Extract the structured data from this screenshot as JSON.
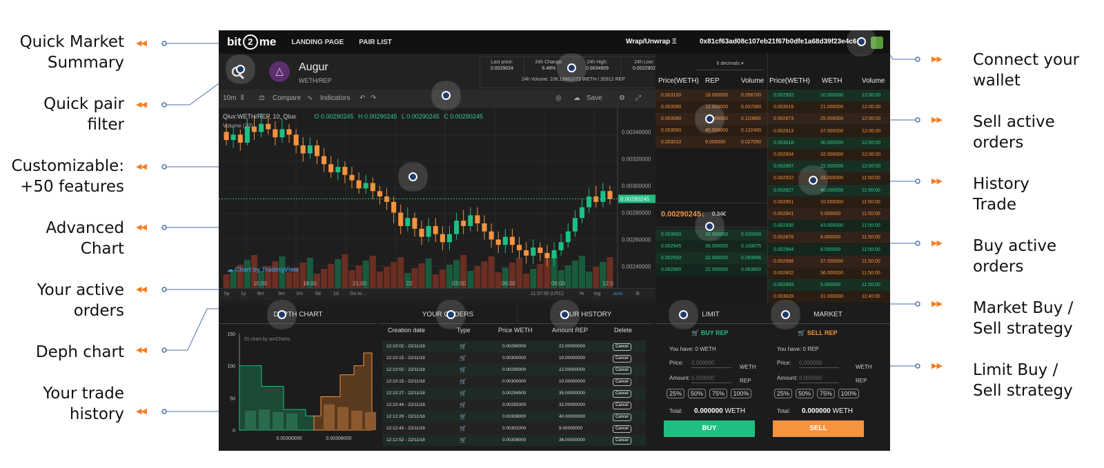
{
  "callouts_left": [
    {
      "text": "Quick Market\nSummary"
    },
    {
      "text": "Quick pair\nfilter"
    },
    {
      "text": "Customizable:\n+50 features"
    },
    {
      "text": "Advanced\nChart"
    },
    {
      "text": "Your active\norders"
    },
    {
      "text": "Deph chart"
    },
    {
      "text": "Your trade\nhistory"
    }
  ],
  "callouts_right": [
    {
      "text": "Connect your\nwallet"
    },
    {
      "text": "Sell active\norders"
    },
    {
      "text": "History\nTrade"
    },
    {
      "text": "Buy active\norders"
    },
    {
      "text": "Market Buy /\nSell strategy"
    },
    {
      "text": "Limit Buy /\nSell strategy"
    }
  ],
  "colors": {
    "accent": "#f47c20",
    "buy": "#1fbf83",
    "sell": "#f5933e",
    "panel": "#1c1c1c"
  },
  "topbar": {
    "logo_left": "bit",
    "logo_mid": "2",
    "logo_right": "me",
    "nav": [
      "LANDING PAGE",
      "PAIR LIST"
    ],
    "wrap": "Wrap/Unwrap Ξ",
    "address": "0x81cf63ad08c107eb21f67b0dfe1a68d39f23e4c6"
  },
  "pair": {
    "name": "Augur",
    "sub": "WETH/REP",
    "icon": "augur-icon"
  },
  "summary": {
    "last_price_label": "Last price:",
    "last_price": "0.0029024",
    "change_label": "24h Change:",
    "change": "6.48%",
    "high_label": "24h High:",
    "high": "0.0034909",
    "low_label": "24h Low:",
    "low": "0.0022902",
    "volume": "24h Volume: 106.13661073 WETH / 35912 REP"
  },
  "toolbar": {
    "interval": "10m",
    "compare": "Compare",
    "indicators": "Indicators",
    "save": "Save"
  },
  "chart": {
    "legend": "Qlux:WETH/REP, 10, Qlux",
    "ohlc": [
      "O 0.00290245",
      "H 0.00290245",
      "L 0.00290245",
      "C 0.00290245"
    ],
    "volume_label": "Volume (20)",
    "y_ticks": [
      "0.00340000",
      "0.00320000",
      "0.00300000",
      "0.00280000",
      "0.00260000",
      "0.00240000"
    ],
    "current_price": "0.00290245",
    "x_ticks": [
      "15:00",
      "18:00",
      "21:00",
      "22",
      "03:00",
      "06:00",
      "09:00",
      "12:0"
    ],
    "watermark": "Chart by TradingView",
    "ranges": [
      "5y",
      "1y",
      "6m",
      "3m",
      "1m",
      "5d",
      "1d",
      "Go to..."
    ],
    "clock": "11:37:50 (UTC)",
    "scale_opts": [
      "%",
      "log",
      "auto"
    ]
  },
  "orderbook": {
    "decimals": "6 decimals",
    "headers": [
      "Price(WETH)",
      "REP",
      "Volume"
    ],
    "sells": [
      [
        "0.003150",
        "18.000000",
        "0.056700"
      ],
      [
        "0.003090",
        "12.000000",
        "0.037080"
      ],
      [
        "0.003080",
        "36.000000",
        "0.110880"
      ],
      [
        "0.003060",
        "40.000000",
        "0.122400"
      ],
      [
        "0.003010",
        "9.000000",
        "0.027090"
      ]
    ],
    "mid_price": "0.00290245",
    "mid_change": "0.34€",
    "buys": [
      [
        "0.003000",
        "10.000000",
        "0.030000"
      ],
      [
        "0.002945",
        "35.000000",
        "0.103075"
      ],
      [
        "0.002933",
        "32.000000",
        "0.093856"
      ],
      [
        "0.002900",
        "22.000000",
        "0.063800"
      ]
    ]
  },
  "history": {
    "headers": [
      "Price(WETH)",
      "WETH",
      "Volume"
    ],
    "rows": [
      [
        "0.002902",
        "10.000000",
        "12:00:00",
        "buy"
      ],
      [
        "0.003019",
        "21.000000",
        "12:00:00",
        "sell"
      ],
      [
        "0.002873",
        "25.000000",
        "12:00:00",
        "sell"
      ],
      [
        "0.002913",
        "37.000000",
        "12:00:00",
        "sell"
      ],
      [
        "0.003018",
        "30.000000",
        "12:00:00",
        "buy"
      ],
      [
        "0.002934",
        "32.000000",
        "12:00:00",
        "sell"
      ],
      [
        "0.002887",
        "22.000000",
        "12:00:00",
        "buy"
      ],
      [
        "0.002922",
        "33.000000",
        "11:50:00",
        "sell"
      ],
      [
        "0.002827",
        "40.000000",
        "11:50:00",
        "buy"
      ],
      [
        "0.002851",
        "10.000000",
        "11:50:00",
        "sell"
      ],
      [
        "0.002941",
        "5.000000",
        "11:50:00",
        "sell"
      ],
      [
        "0.002930",
        "43.000000",
        "11:50:00",
        "buy"
      ],
      [
        "0.002878",
        "8.000000",
        "11:50:00",
        "sell"
      ],
      [
        "0.002964",
        "8.000000",
        "11:50:00",
        "buy"
      ],
      [
        "0.002966",
        "37.000000",
        "11:50:00",
        "sell"
      ],
      [
        "0.002802",
        "36.000000",
        "11:50:00",
        "sell"
      ],
      [
        "0.002869",
        "5.000000",
        "11:50:00",
        "buy"
      ],
      [
        "0.003828",
        "31.000000",
        "11:40:00",
        "sell"
      ]
    ]
  },
  "bottom_tabs": {
    "depth": "DEPTH CHART",
    "orders": "YOUR ORDERS",
    "history": "YOUR HISTORY"
  },
  "depth": {
    "credit": "JS chart by amCharts",
    "y_ticks": [
      "150",
      "100",
      "50",
      "0"
    ],
    "x_ticks": [
      "0.00300000",
      "0.00308000"
    ]
  },
  "orders": {
    "headers": [
      "Creation date",
      "Type",
      "Price WETH",
      "Amount REP",
      "Delete"
    ],
    "cancel": "Cancel",
    "rows": [
      [
        "12:10:02 - 22/11/18",
        "buy",
        "0.00290000",
        "22.00000000"
      ],
      [
        "12:10:15 - 22/11/18",
        "buy",
        "0.00300000",
        "10.00000000"
      ],
      [
        "12:10:02 - 22/11/18",
        "buy",
        "0.00290000",
        "22.00000000"
      ],
      [
        "12:10:15 - 22/11/18",
        "buy",
        "0.00300000",
        "10.00000000"
      ],
      [
        "12:10:27 - 22/11/18",
        "buy",
        "0.00294500",
        "35.00000000"
      ],
      [
        "12:10:44 - 22/11/18",
        "buy",
        "0.00293300",
        "32.00000000"
      ],
      [
        "12:12:29 - 22/11/18",
        "sell",
        "0.00306000",
        "40.00000000"
      ],
      [
        "12:12:43 - 22/11/18",
        "sell",
        "0.00301000",
        "9.00000000"
      ],
      [
        "12:12:52 - 22/11/18",
        "sell",
        "0.00308000",
        "36.00000000"
      ]
    ]
  },
  "trade": {
    "tab_limit": "LIMIT",
    "tab_market": "MARKET",
    "buy_title": "BUY REP",
    "sell_title": "SELL REP",
    "buy_have": "You have: 0 WETH",
    "sell_have": "You have: 0 REP",
    "price_label": "Price:",
    "amount_label": "Amount:",
    "price_ph": "0.000000",
    "amount_ph": "0.000000",
    "buy_price_unit": "WETH",
    "buy_amount_unit": "REP",
    "sell_price_unit": "WETH",
    "sell_amount_unit": "REP",
    "pcts": [
      "25%",
      "50%",
      "75%",
      "100%"
    ],
    "total_label": "Total:",
    "total_value": "0.000000",
    "total_unit": "WETH",
    "buy_btn": "BUY",
    "sell_btn": "SELL"
  },
  "candles": [
    [
      340,
      334,
      346,
      330
    ],
    [
      334,
      338,
      344,
      328
    ],
    [
      338,
      332,
      342,
      326
    ],
    [
      332,
      344,
      350,
      330
    ],
    [
      344,
      340,
      352,
      334
    ],
    [
      340,
      346,
      354,
      336
    ],
    [
      346,
      342,
      352,
      338
    ],
    [
      342,
      336,
      348,
      330
    ],
    [
      336,
      342,
      350,
      332
    ],
    [
      342,
      338,
      346,
      332
    ],
    [
      338,
      330,
      342,
      324
    ],
    [
      330,
      324,
      336,
      318
    ],
    [
      324,
      330,
      336,
      320
    ],
    [
      330,
      322,
      334,
      316
    ],
    [
      322,
      316,
      328,
      310
    ],
    [
      316,
      310,
      322,
      306
    ],
    [
      310,
      314,
      320,
      304
    ],
    [
      314,
      308,
      318,
      302
    ],
    [
      308,
      304,
      314,
      298
    ],
    [
      304,
      298,
      310,
      294
    ],
    [
      298,
      302,
      308,
      294
    ],
    [
      302,
      296,
      306,
      290
    ],
    [
      296,
      292,
      300,
      286
    ],
    [
      292,
      288,
      298,
      282
    ],
    [
      288,
      280,
      292,
      272
    ],
    [
      280,
      270,
      286,
      264
    ],
    [
      270,
      276,
      284,
      266
    ],
    [
      276,
      268,
      280,
      262
    ],
    [
      268,
      262,
      274,
      256
    ],
    [
      262,
      270,
      276,
      258
    ],
    [
      270,
      264,
      276,
      258
    ],
    [
      264,
      258,
      270,
      252
    ],
    [
      258,
      264,
      270,
      252
    ],
    [
      264,
      274,
      280,
      260
    ],
    [
      274,
      270,
      282,
      264
    ],
    [
      270,
      278,
      284,
      266
    ],
    [
      278,
      272,
      284,
      266
    ],
    [
      272,
      266,
      278,
      260
    ],
    [
      266,
      260,
      272,
      254
    ],
    [
      260,
      256,
      266,
      250
    ],
    [
      256,
      262,
      268,
      250
    ],
    [
      262,
      256,
      268,
      250
    ],
    [
      256,
      252,
      262,
      246
    ],
    [
      252,
      248,
      258,
      242
    ],
    [
      248,
      254,
      260,
      242
    ],
    [
      254,
      250,
      258,
      244
    ],
    [
      250,
      246,
      256,
      240
    ],
    [
      246,
      252,
      258,
      240
    ],
    [
      252,
      258,
      264,
      248
    ],
    [
      258,
      266,
      272,
      254
    ],
    [
      266,
      276,
      282,
      262
    ],
    [
      276,
      284,
      290,
      272
    ],
    [
      284,
      292,
      298,
      280
    ],
    [
      292,
      288,
      300,
      284
    ],
    [
      288,
      296,
      302,
      284
    ],
    [
      296,
      290,
      300,
      286
    ]
  ]
}
